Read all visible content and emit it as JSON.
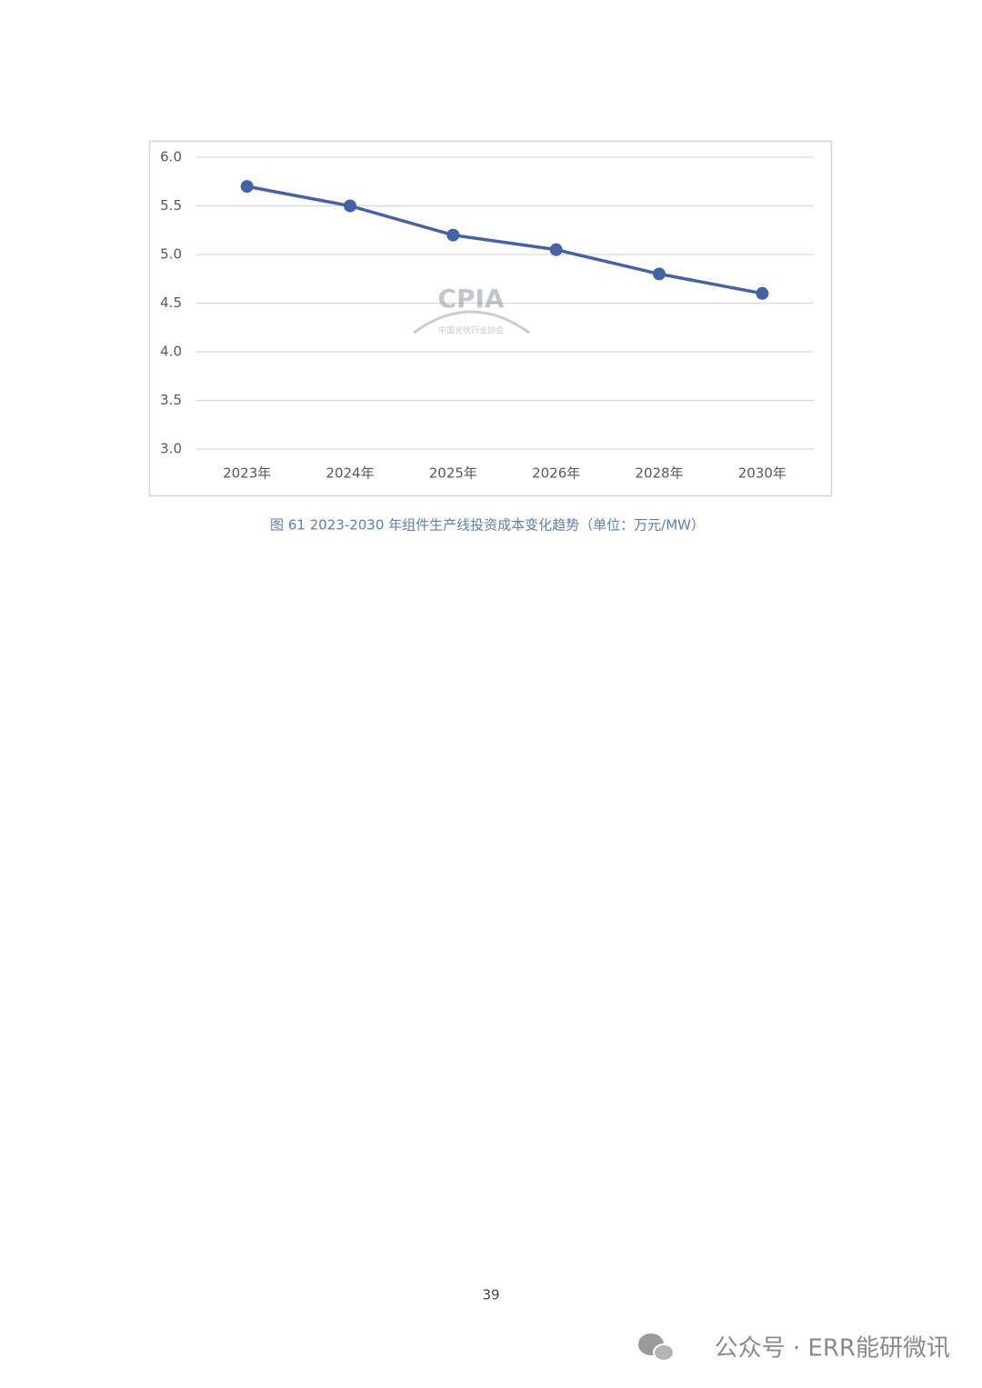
{
  "chart_data": {
    "type": "line",
    "title": "图 61 2023-2030 年组件生产线投资成本变化趋势（单位：万元/MW）",
    "categories": [
      "2023年",
      "2024年",
      "2025年",
      "2026年",
      "2028年",
      "2030年"
    ],
    "values": [
      5.7,
      5.5,
      5.2,
      5.05,
      4.8,
      4.6
    ],
    "color": "#4463a6",
    "ylim": [
      3,
      6
    ],
    "yticks": [
      {
        "value": 3,
        "label": "3.0"
      },
      {
        "value": 3.5,
        "label": "3.5"
      },
      {
        "value": 4,
        "label": "4.0"
      },
      {
        "value": 4.5,
        "label": "4.5"
      },
      {
        "value": 5,
        "label": "5.0"
      },
      {
        "value": 5.5,
        "label": "5.5"
      },
      {
        "value": 6,
        "label": "6.0"
      }
    ],
    "grid": true,
    "logo": {
      "name": "CPIA",
      "subtitle": "中国光伏行业协会"
    }
  },
  "page_number": "39",
  "watermark": "公众号 · ERR能研微讯"
}
